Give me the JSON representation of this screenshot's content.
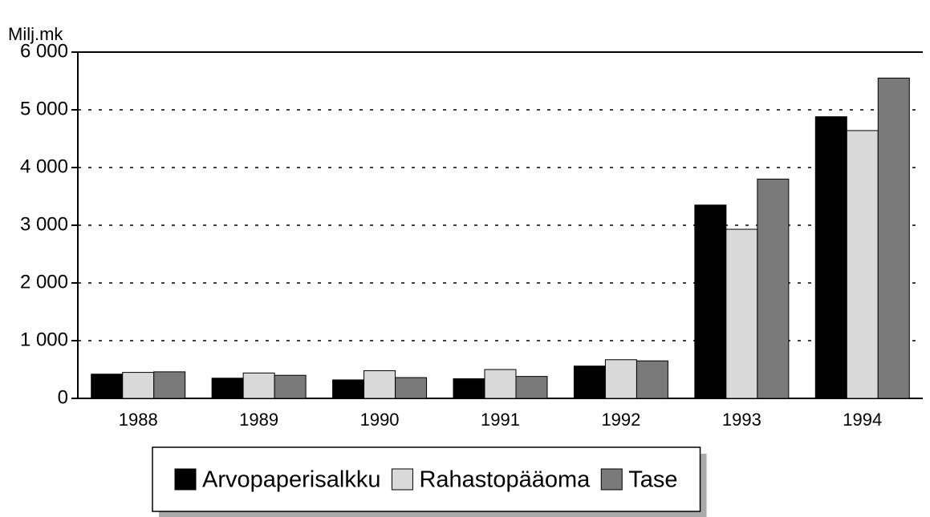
{
  "chart_data": {
    "type": "bar",
    "y_label": "Milj.mk",
    "categories": [
      "1988",
      "1989",
      "1990",
      "1991",
      "1992",
      "1993",
      "1994"
    ],
    "series": [
      {
        "name": "Arvopaperisalkku",
        "color": "#000000",
        "values": [
          420,
          350,
          320,
          340,
          560,
          3350,
          4880
        ]
      },
      {
        "name": "Rahastopääoma",
        "color": "#d9d9d9",
        "values": [
          450,
          440,
          480,
          500,
          670,
          2930,
          4640
        ]
      },
      {
        "name": "Tase",
        "color": "#7a7a7a",
        "values": [
          460,
          400,
          360,
          380,
          650,
          3800,
          5550
        ]
      }
    ],
    "ylim": [
      0,
      6000
    ],
    "yticks": [
      0,
      {
        "value": 1000,
        "label": "1 000"
      },
      {
        "value": 2000,
        "label": "2 000"
      },
      {
        "value": 3000,
        "label": "3 000"
      },
      {
        "value": 4000,
        "label": "4 000"
      },
      {
        "value": 5000,
        "label": "5 000"
      },
      {
        "value": 6000,
        "label": "6 000"
      }
    ],
    "grid": true,
    "legend": "bottom"
  }
}
